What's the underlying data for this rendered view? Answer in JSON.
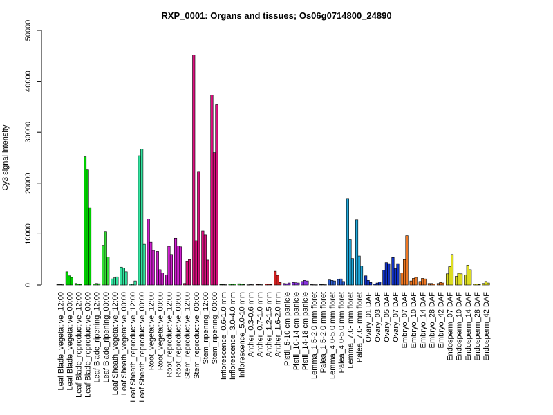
{
  "chart_data": {
    "type": "bar",
    "title": "RXP_0001: Organs and tissues; Os06g0714800_24890",
    "xlabel": "",
    "ylabel": "Cy3 signal intensity",
    "ylim": [
      0,
      50000
    ],
    "yticks": [
      0,
      10000,
      20000,
      30000,
      40000,
      50000
    ],
    "grid": false,
    "legend": "none",
    "groups": [
      {
        "label": "Leaf Blade_vegetative_12:00",
        "color": "#00cc00",
        "values": [
          80,
          80,
          60
        ]
      },
      {
        "label": "Leaf Blade_vegetative_00:00",
        "color": "#00cc00",
        "values": [
          2600,
          1800,
          1500
        ]
      },
      {
        "label": "Leaf Blade_reproductive_12:00",
        "color": "#00cc00",
        "values": [
          300,
          200,
          150
        ]
      },
      {
        "label": "Leaf Blade_reproductive_00:00",
        "color": "#00cc00",
        "values": [
          25200,
          22600,
          15200
        ]
      },
      {
        "label": "Leaf Blade_ripening_12:00",
        "color": "#33dd33",
        "values": [
          200,
          300,
          250
        ]
      },
      {
        "label": "Leaf Blade_ripening_00:00",
        "color": "#33dd33",
        "values": [
          7800,
          10500,
          5500
        ]
      },
      {
        "label": "Leaf Sheath_vegetative_12:00",
        "color": "#33e5a0",
        "values": [
          1200,
          1400,
          1600
        ]
      },
      {
        "label": "Leaf Sheath_vegetative_00:00",
        "color": "#33e5a0",
        "values": [
          3500,
          3300,
          2600
        ]
      },
      {
        "label": "Leaf Sheath_reproductive_12:00",
        "color": "#33e5a0",
        "values": [
          200,
          150,
          800
        ]
      },
      {
        "label": "Leaf Sheath_reproductive_00:00",
        "color": "#33e5a0",
        "values": [
          25400,
          26700,
          8000
        ]
      },
      {
        "label": "Root_vegetative_12:00",
        "color": "#d020d0",
        "values": [
          13000,
          8400,
          6800
        ]
      },
      {
        "label": "Root_vegetative_00:00",
        "color": "#d020d0",
        "values": [
          6600,
          3000,
          2400
        ]
      },
      {
        "label": "Root_reproductive_12:00",
        "color": "#d020d0",
        "values": [
          2000,
          7600,
          6000
        ]
      },
      {
        "label": "Root_reproductive_00:00",
        "color": "#d020d0",
        "values": [
          9200,
          7700,
          7500
        ]
      },
      {
        "label": "Stem_reproductive_12:00",
        "color": "#dd1080",
        "values": [
          300,
          4600,
          5000
        ]
      },
      {
        "label": "Stem_reproductive_00:00",
        "color": "#dd1080",
        "values": [
          45200,
          8700,
          22300
        ]
      },
      {
        "label": "Stem_ripening_12:00",
        "color": "#dd1080",
        "values": [
          10600,
          9800,
          4900
        ]
      },
      {
        "label": "Stem_ripening_00:00",
        "color": "#dd1080",
        "values": [
          37300,
          26000,
          35400
        ]
      },
      {
        "label": "Inflorescence_0.6-1.0 mm",
        "color": "#33cc33",
        "values": [
          100,
          80,
          60
        ]
      },
      {
        "label": "Inflorescence_3.0-4.0 mm",
        "color": "#33cc33",
        "values": [
          200,
          150,
          200
        ]
      },
      {
        "label": "Inflorescence_5.0-10 mm",
        "color": "#33cc33",
        "values": [
          250,
          200,
          100
        ]
      },
      {
        "label": "Anther_0.3-0.6 mm",
        "color": "#cc2020",
        "values": [
          50,
          80,
          60
        ]
      },
      {
        "label": "Anther_0.7-1.0 mm",
        "color": "#cc2020",
        "values": [
          100,
          80,
          60
        ]
      },
      {
        "label": "Anther_1.2-1.5 mm",
        "color": "#cc2020",
        "values": [
          200,
          150,
          100
        ]
      },
      {
        "label": "Anther_1.6-2.0 mm",
        "color": "#cc2020",
        "values": [
          2700,
          1900,
          500
        ]
      },
      {
        "label": "Pistil_5-10 cm panicle",
        "color": "#8833dd",
        "values": [
          300,
          250,
          400
        ]
      },
      {
        "label": "Pistil_10-14 cm panicle",
        "color": "#8833dd",
        "values": [
          500,
          450,
          400
        ]
      },
      {
        "label": "Pistil_14-18 cm panicle",
        "color": "#8833dd",
        "values": [
          700,
          900,
          800
        ]
      },
      {
        "label": "Lemma_1.5-2.0 mm floret",
        "color": "#3366dd",
        "values": [
          80,
          60,
          50
        ]
      },
      {
        "label": "Palea_1.5-2.0 mm floret",
        "color": "#3366dd",
        "values": [
          100,
          80,
          60
        ]
      },
      {
        "label": "Lemma_4.0-5.0 mm floret",
        "color": "#3366dd",
        "values": [
          1000,
          900,
          800
        ]
      },
      {
        "label": "Palea_4.0-5.0 mm floret",
        "color": "#3366dd",
        "values": [
          1100,
          1200,
          700
        ]
      },
      {
        "label": "Lemma_7.0- mm floret",
        "color": "#22aadd",
        "values": [
          17000,
          8900,
          5200
        ]
      },
      {
        "label": "Palea_7.0- mm floret",
        "color": "#22aadd",
        "values": [
          12800,
          5700,
          3700
        ]
      },
      {
        "label": "Ovary_01 DAF",
        "color": "#1133cc",
        "values": [
          1800,
          900,
          500
        ]
      },
      {
        "label": "Ovary_03 DAF",
        "color": "#1133cc",
        "values": [
          200,
          400,
          600
        ]
      },
      {
        "label": "Ovary_05 DAF",
        "color": "#1133cc",
        "values": [
          2900,
          4400,
          4200
        ]
      },
      {
        "label": "Ovary_07 DAF",
        "color": "#1133cc",
        "values": [
          5400,
          3200,
          4200
        ]
      },
      {
        "label": "Embryo_07 DAF",
        "color": "#ee7722",
        "values": [
          2400,
          5000,
          9700
        ]
      },
      {
        "label": "Embryo_10 DAF",
        "color": "#ee7722",
        "values": [
          800,
          1300,
          1500
        ]
      },
      {
        "label": "Embryo_14 DAF",
        "color": "#ee7722",
        "values": [
          700,
          1300,
          1200
        ]
      },
      {
        "label": "Embryo_28 DAF",
        "color": "#ee7722",
        "values": [
          300,
          300,
          200
        ]
      },
      {
        "label": "Embryo_42 DAF",
        "color": "#ee7722",
        "values": [
          300,
          500,
          400
        ]
      },
      {
        "label": "Endosperm_07 DAF",
        "color": "#dddd22",
        "values": [
          2200,
          3600,
          6000
        ]
      },
      {
        "label": "Endosperm_10 DAF",
        "color": "#dddd22",
        "values": [
          1700,
          2300,
          2200
        ]
      },
      {
        "label": "Endosperm_14 DAF",
        "color": "#dddd22",
        "values": [
          2000,
          3900,
          3000
        ]
      },
      {
        "label": "Endosperm_28 DAF",
        "color": "#dddd22",
        "values": [
          200,
          200,
          100
        ]
      },
      {
        "label": "Endosperm_42 DAF",
        "color": "#dddd22",
        "values": [
          300,
          700,
          400
        ]
      }
    ]
  }
}
